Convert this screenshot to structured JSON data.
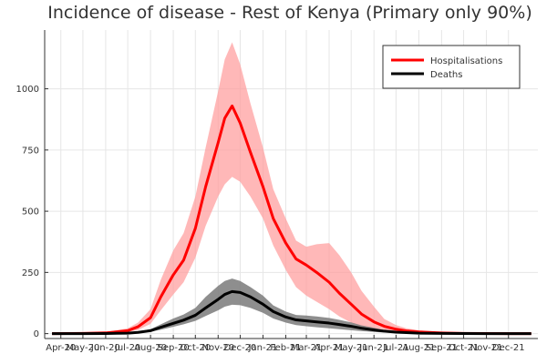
{
  "chart_data": {
    "type": "line",
    "title": "Incidence of disease - Rest of Kenya (Primary only 90%)",
    "xlabel": "",
    "ylabel": "",
    "x_range": [
      "2020-03-10",
      "2022-01-10"
    ],
    "ylim": [
      -20,
      1240
    ],
    "yticks": [
      0,
      250,
      500,
      750,
      1000
    ],
    "xticks": [
      {
        "label": "Apr-20",
        "date": "2020-04-01"
      },
      {
        "label": "May-20",
        "date": "2020-05-01"
      },
      {
        "label": "Jun-20",
        "date": "2020-06-01"
      },
      {
        "label": "Jul-20",
        "date": "2020-07-01"
      },
      {
        "label": "Aug-20",
        "date": "2020-08-01"
      },
      {
        "label": "Sep-20",
        "date": "2020-09-01"
      },
      {
        "label": "Oct-20",
        "date": "2020-10-01"
      },
      {
        "label": "Nov-20",
        "date": "2020-11-01"
      },
      {
        "label": "Dec-20",
        "date": "2020-12-01"
      },
      {
        "label": "Jan-21",
        "date": "2021-01-01"
      },
      {
        "label": "Feb-21",
        "date": "2021-02-01"
      },
      {
        "label": "Mar-21",
        "date": "2021-03-01"
      },
      {
        "label": "Apr-21",
        "date": "2021-04-01"
      },
      {
        "label": "May-21",
        "date": "2021-05-01"
      },
      {
        "label": "Jun-21",
        "date": "2021-06-01"
      },
      {
        "label": "Jul-21",
        "date": "2021-07-01"
      },
      {
        "label": "Aug-21",
        "date": "2021-08-01"
      },
      {
        "label": "Sep-21",
        "date": "2021-09-01"
      },
      {
        "label": "Oct-21",
        "date": "2021-10-01"
      },
      {
        "label": "Nov-21",
        "date": "2021-11-01"
      },
      {
        "label": "Dec-21",
        "date": "2021-12-01"
      }
    ],
    "grid": true,
    "legend_position": "top-right",
    "series": [
      {
        "name": "Hospitalisations",
        "color": "#ff0000",
        "band_color": "#ff9a9a",
        "x": [
          "2020-03-20",
          "2020-05-01",
          "2020-06-01",
          "2020-07-01",
          "2020-07-15",
          "2020-08-01",
          "2020-08-15",
          "2020-09-01",
          "2020-09-15",
          "2020-10-01",
          "2020-10-15",
          "2020-11-01",
          "2020-11-10",
          "2020-11-20",
          "2020-12-01",
          "2020-12-15",
          "2021-01-01",
          "2021-01-15",
          "2021-02-01",
          "2021-02-15",
          "2021-03-01",
          "2021-03-15",
          "2021-04-01",
          "2021-04-15",
          "2021-05-01",
          "2021-05-15",
          "2021-06-01",
          "2021-06-15",
          "2021-07-01",
          "2021-07-15",
          "2021-08-01",
          "2021-09-01",
          "2021-10-01",
          "2021-11-01",
          "2021-12-01",
          "2022-01-01"
        ],
        "values": [
          0,
          1,
          3,
          12,
          28,
          65,
          150,
          240,
          300,
          430,
          600,
          780,
          880,
          930,
          860,
          740,
          600,
          470,
          370,
          305,
          280,
          250,
          210,
          165,
          120,
          80,
          48,
          30,
          18,
          11,
          7,
          3,
          1,
          0.5,
          0.2,
          0.1
        ],
        "lower": [
          0,
          0,
          1,
          6,
          15,
          40,
          95,
          160,
          210,
          310,
          440,
          560,
          610,
          640,
          620,
          560,
          470,
          360,
          260,
          190,
          155,
          130,
          100,
          70,
          45,
          25,
          14,
          8,
          5,
          3,
          2,
          1,
          0.5,
          0.2,
          0.1,
          0
        ],
        "upper": [
          0,
          2,
          6,
          22,
          45,
          100,
          220,
          340,
          410,
          560,
          760,
          990,
          1120,
          1190,
          1100,
          940,
          760,
          590,
          470,
          380,
          355,
          365,
          370,
          320,
          250,
          175,
          110,
          60,
          35,
          22,
          14,
          6,
          3,
          1,
          0.4,
          0.2
        ]
      },
      {
        "name": "Deaths",
        "color": "#000000",
        "band_color": "#7a7a7a",
        "x": [
          "2020-03-20",
          "2020-05-01",
          "2020-06-01",
          "2020-07-01",
          "2020-07-15",
          "2020-08-01",
          "2020-08-15",
          "2020-09-01",
          "2020-09-15",
          "2020-10-01",
          "2020-10-15",
          "2020-11-01",
          "2020-11-10",
          "2020-11-20",
          "2020-12-01",
          "2020-12-15",
          "2021-01-01",
          "2021-01-15",
          "2021-02-01",
          "2021-02-15",
          "2021-03-01",
          "2021-03-15",
          "2021-04-01",
          "2021-04-15",
          "2021-05-01",
          "2021-05-15",
          "2021-06-01",
          "2021-06-15",
          "2021-07-01",
          "2021-07-15",
          "2021-08-01",
          "2021-09-01",
          "2021-10-01",
          "2021-11-01",
          "2021-12-01",
          "2022-01-01"
        ],
        "values": [
          0,
          0,
          0.5,
          2,
          5,
          12,
          26,
          42,
          55,
          75,
          105,
          140,
          160,
          172,
          168,
          150,
          120,
          90,
          68,
          56,
          52,
          48,
          43,
          37,
          30,
          22,
          15,
          10,
          6,
          4,
          2,
          1,
          0.5,
          0.2,
          0.1,
          0
        ],
        "lower": [
          0,
          0,
          0.2,
          1,
          3,
          8,
          16,
          28,
          38,
          52,
          72,
          95,
          110,
          118,
          116,
          105,
          85,
          62,
          45,
          35,
          30,
          26,
          22,
          18,
          14,
          10,
          7,
          4,
          3,
          2,
          1,
          0.5,
          0.2,
          0.1,
          0,
          0
        ],
        "upper": [
          0,
          0.5,
          1,
          4,
          8,
          18,
          38,
          62,
          78,
          105,
          150,
          195,
          215,
          225,
          215,
          190,
          155,
          115,
          90,
          76,
          74,
          70,
          64,
          56,
          46,
          34,
          24,
          15,
          9,
          6,
          4,
          2,
          1,
          0.4,
          0.2,
          0.1
        ]
      }
    ]
  }
}
